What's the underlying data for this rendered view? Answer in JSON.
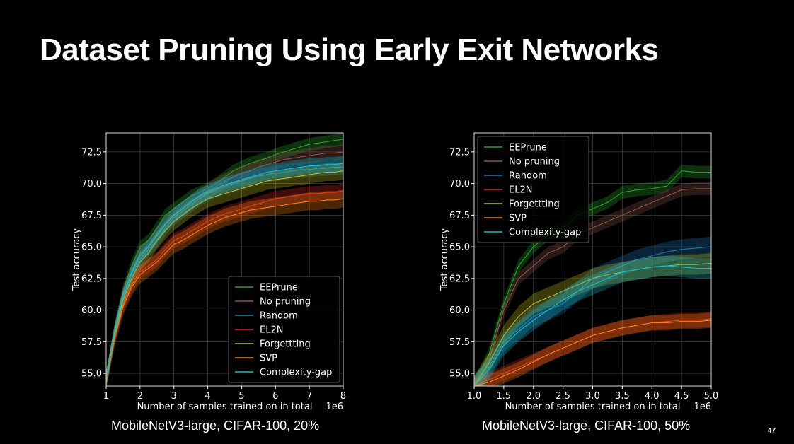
{
  "slide": {
    "title": "Dataset Pruning Using Early Exit Networks",
    "page_number": "47"
  },
  "colors": {
    "EEPrune": "#2ca02c",
    "No pruning": "#8c564b",
    "Random": "#1f77b4",
    "EL2N": "#d62728",
    "Forgettting": "#bcbd22",
    "SVP": "#ff7f0e",
    "Complexity-gap": "#17becf"
  },
  "chart_data": [
    {
      "type": "line",
      "caption": "MobileNetV3-large, CIFAR-100, 20%",
      "xlabel": "Number of samples trained on in total",
      "x_offset_label": "1e6",
      "ylabel": "Test accuracy",
      "xlim": [
        1,
        8
      ],
      "ylim": [
        54,
        74
      ],
      "xticks": [
        1,
        2,
        3,
        4,
        5,
        6,
        7,
        8
      ],
      "xtick_labels": [
        "1",
        "2",
        "3",
        "4",
        "5",
        "6",
        "7",
        "8"
      ],
      "yticks": [
        55,
        57.5,
        60,
        62.5,
        65,
        67.5,
        70,
        72.5
      ],
      "ytick_labels": [
        "55.0",
        "57.5",
        "60.0",
        "62.5",
        "65.0",
        "67.5",
        "70.0",
        "72.5"
      ],
      "grid": true,
      "legend_position": "lower-right",
      "x": [
        1,
        1.25,
        1.5,
        1.75,
        2,
        2.25,
        2.5,
        2.75,
        3,
        3.25,
        3.5,
        3.75,
        4,
        4.25,
        4.5,
        4.75,
        5,
        5.25,
        5.5,
        5.75,
        6,
        6.25,
        6.5,
        6.75,
        7,
        7.25,
        7.5,
        7.75,
        8
      ],
      "series": [
        {
          "name": "EEPrune",
          "values": [
            54.5,
            58.5,
            61.5,
            63.5,
            65.0,
            65.5,
            66.5,
            67.5,
            68.0,
            68.5,
            69.0,
            69.3,
            69.6,
            70.0,
            70.5,
            71.0,
            71.3,
            71.6,
            71.8,
            72.0,
            72.3,
            72.5,
            72.7,
            72.9,
            73.1,
            73.2,
            73.3,
            73.4,
            73.5
          ],
          "band": 0.5
        },
        {
          "name": "No pruning",
          "values": [
            54.5,
            58.3,
            61.3,
            63.0,
            64.5,
            65.0,
            66.0,
            66.8,
            67.5,
            68.0,
            68.5,
            69.0,
            69.4,
            69.8,
            70.2,
            70.5,
            70.8,
            71.0,
            71.3,
            71.5,
            71.7,
            71.9,
            72.0,
            72.1,
            72.2,
            72.3,
            72.4,
            72.4,
            72.5
          ],
          "band": 0.6
        },
        {
          "name": "Random",
          "values": [
            54.5,
            58.2,
            61.0,
            62.8,
            64.0,
            64.8,
            65.5,
            66.5,
            67.3,
            67.8,
            68.3,
            68.8,
            69.2,
            69.5,
            69.8,
            70.0,
            70.2,
            70.4,
            70.6,
            70.7,
            70.8,
            70.9,
            71.0,
            71.1,
            71.1,
            71.2,
            71.2,
            71.3,
            71.3
          ],
          "band": 0.6
        },
        {
          "name": "EL2N",
          "values": [
            54.5,
            58.0,
            60.5,
            62.0,
            63.0,
            63.5,
            64.0,
            64.8,
            65.5,
            65.8,
            66.2,
            66.6,
            67.0,
            67.3,
            67.6,
            67.8,
            68.0,
            68.2,
            68.4,
            68.6,
            68.8,
            68.9,
            69.0,
            69.1,
            69.2,
            69.2,
            69.3,
            69.3,
            69.4
          ],
          "band": 0.6
        },
        {
          "name": "Forgettting",
          "values": [
            54.5,
            58.1,
            60.8,
            62.5,
            63.8,
            64.5,
            65.5,
            66.3,
            67.0,
            67.5,
            68.0,
            68.4,
            68.8,
            69.0,
            69.2,
            69.4,
            69.6,
            69.8,
            70.0,
            70.2,
            70.3,
            70.4,
            70.5,
            70.6,
            70.7,
            70.8,
            70.9,
            70.9,
            71.0
          ],
          "band": 0.7
        },
        {
          "name": "SVP",
          "values": [
            54.5,
            57.8,
            60.3,
            61.8,
            62.8,
            63.3,
            63.8,
            64.5,
            65.2,
            65.5,
            65.9,
            66.3,
            66.7,
            67.0,
            67.3,
            67.5,
            67.7,
            67.9,
            68.0,
            68.1,
            68.2,
            68.3,
            68.4,
            68.5,
            68.6,
            68.6,
            68.7,
            68.7,
            68.8
          ],
          "band": 0.7
        },
        {
          "name": "Complexity-gap",
          "values": [
            54.5,
            58.3,
            61.1,
            62.9,
            64.3,
            65.0,
            65.9,
            66.8,
            67.5,
            68.0,
            68.5,
            69.0,
            69.3,
            69.6,
            69.9,
            70.1,
            70.3,
            70.5,
            70.7,
            70.9,
            71.0,
            71.1,
            71.2,
            71.3,
            71.4,
            71.4,
            71.5,
            71.5,
            71.6
          ],
          "band": 0.6
        }
      ]
    },
    {
      "type": "line",
      "caption": "MobileNetV3-large, CIFAR-100, 50%",
      "xlabel": "Number of samples trained on in total",
      "x_offset_label": "1e6",
      "ylabel": "Test accuracy",
      "xlim": [
        1,
        5
      ],
      "ylim": [
        54,
        74
      ],
      "xticks": [
        1,
        1.5,
        2,
        2.5,
        3,
        3.5,
        4,
        4.5,
        5
      ],
      "xtick_labels": [
        "1.0",
        "1.5",
        "2.0",
        "2.5",
        "3.0",
        "3.5",
        "4.0",
        "4.5",
        "5.0"
      ],
      "yticks": [
        55,
        57.5,
        60,
        62.5,
        65,
        67.5,
        70,
        72.5
      ],
      "ytick_labels": [
        "55.0",
        "57.5",
        "60.0",
        "62.5",
        "65.0",
        "67.5",
        "70.0",
        "72.5"
      ],
      "grid": true,
      "legend_position": "upper-left",
      "x": [
        1,
        1.25,
        1.5,
        1.75,
        2,
        2.25,
        2.5,
        2.75,
        3,
        3.25,
        3.5,
        3.75,
        4,
        4.25,
        4.5,
        4.75,
        5
      ],
      "series": [
        {
          "name": "EEPrune",
          "values": [
            54.0,
            56.5,
            60.5,
            63.5,
            65.0,
            66.0,
            66.5,
            67.5,
            68.0,
            68.5,
            69.3,
            69.5,
            69.6,
            69.8,
            71.0,
            70.9,
            70.9
          ],
          "band": 0.5
        },
        {
          "name": "No pruning",
          "values": [
            54.0,
            56.0,
            60.0,
            62.5,
            63.5,
            64.5,
            65.0,
            66.0,
            66.5,
            67.0,
            67.5,
            68.0,
            68.5,
            69.0,
            69.5,
            69.6,
            69.6
          ],
          "band": 0.5
        },
        {
          "name": "Random",
          "values": [
            54.0,
            55.5,
            57.5,
            58.5,
            59.5,
            60.0,
            60.5,
            61.5,
            62.5,
            63.0,
            63.5,
            64.0,
            64.3,
            64.6,
            64.8,
            64.9,
            65.0
          ],
          "band": 0.8
        },
        {
          "name": "EL2N",
          "values": [
            54.0,
            54.5,
            55.0,
            55.5,
            56.0,
            56.5,
            57.0,
            57.5,
            58.0,
            58.3,
            58.6,
            58.8,
            59.0,
            59.1,
            59.2,
            59.2,
            59.3
          ],
          "band": 0.6
        },
        {
          "name": "Forgettting",
          "values": [
            54.0,
            55.8,
            58.0,
            59.5,
            60.5,
            61.0,
            61.5,
            62.0,
            62.5,
            62.8,
            63.0,
            63.2,
            63.4,
            63.5,
            63.6,
            63.6,
            63.7
          ],
          "band": 0.8
        },
        {
          "name": "SVP",
          "values": [
            54.0,
            54.3,
            54.8,
            55.3,
            55.9,
            56.5,
            57.0,
            57.5,
            58.0,
            58.3,
            58.6,
            58.8,
            59.0,
            59.0,
            59.1,
            59.1,
            59.2
          ],
          "band": 0.6
        },
        {
          "name": "Complexity-gap",
          "values": [
            54.0,
            55.3,
            57.2,
            58.3,
            59.2,
            60.0,
            60.8,
            61.5,
            62.0,
            62.5,
            63.0,
            63.2,
            63.4,
            63.5,
            63.4,
            63.3,
            63.3
          ],
          "band": 0.8
        }
      ]
    }
  ]
}
